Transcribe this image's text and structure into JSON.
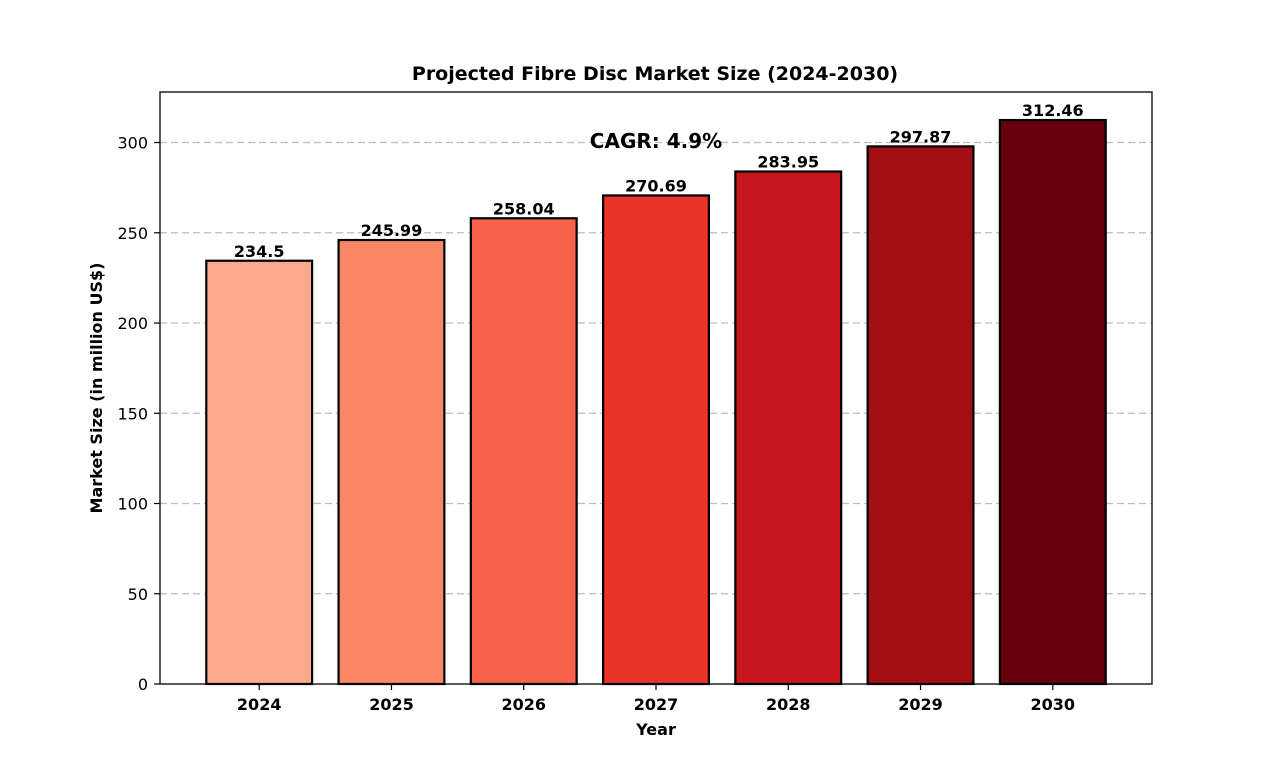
{
  "chart_data": {
    "type": "bar",
    "title": "Projected Fibre Disc Market Size (2024-2030)",
    "xlabel": "Year",
    "ylabel": "Market Size (in million US$)",
    "categories": [
      "2024",
      "2025",
      "2026",
      "2027",
      "2028",
      "2029",
      "2030"
    ],
    "values": [
      234.5,
      245.99,
      258.04,
      270.69,
      283.95,
      297.87,
      312.46
    ],
    "value_labels": [
      "234.5",
      "245.99",
      "258.04",
      "270.69",
      "283.95",
      "297.87",
      "312.46"
    ],
    "colors": [
      "#fcaa8e",
      "#fc8767",
      "#f9624a",
      "#e83429",
      "#c8171c",
      "#a10f15",
      "#67000d"
    ],
    "ylim": [
      0,
      328
    ],
    "yticks": [
      0,
      50,
      100,
      150,
      200,
      250,
      300
    ],
    "grid": "y-dashed",
    "annotation": "CAGR: 4.9%"
  }
}
